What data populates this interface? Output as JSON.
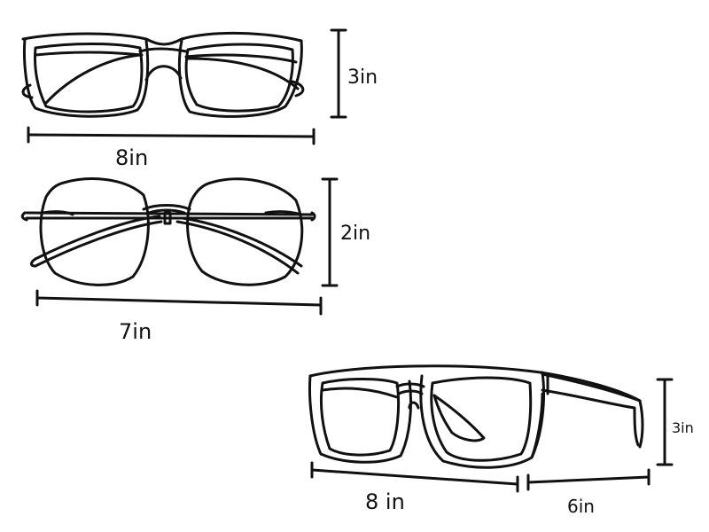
{
  "colors": {
    "ink": "#111111",
    "paper": "#ffffff"
  },
  "glasses": [
    {
      "style": "square-frame",
      "width_label": "8in",
      "height_label": "3in"
    },
    {
      "style": "round-wire-frame",
      "width_label": "7in",
      "height_label": "2in"
    },
    {
      "style": "square-frame-angled-with-temple",
      "width_label": "8 in",
      "height_label": "3in",
      "temple_label": "6in"
    }
  ]
}
